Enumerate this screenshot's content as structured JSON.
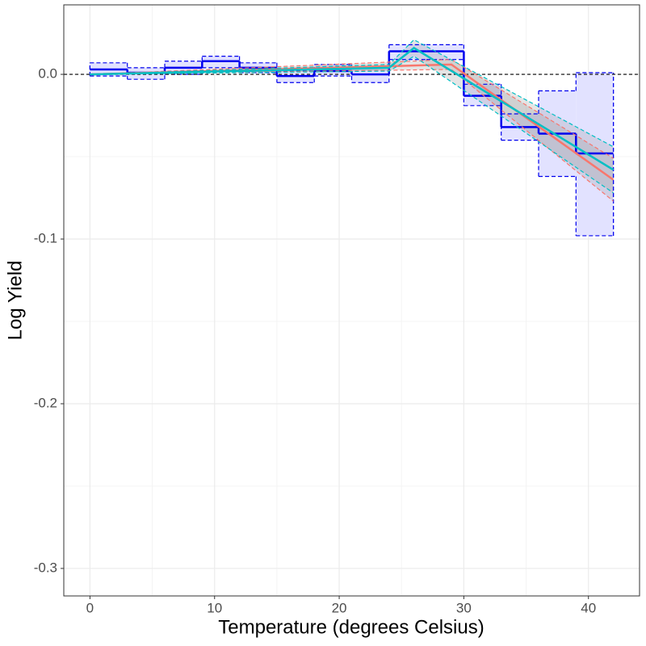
{
  "chart_data": {
    "type": "line",
    "x_label": "Temperature (degrees Celsius)",
    "y_label": "Log Yield",
    "xlim": [
      -2.1,
      44.1
    ],
    "ylim": [
      -0.3167,
      0.0422
    ],
    "xticks": [
      0,
      10,
      20,
      30,
      40
    ],
    "yticks": [
      -0.3,
      -0.2,
      -0.1,
      {
        "value": 0,
        "label": "0.0"
      }
    ],
    "xminor": [
      5,
      15,
      25,
      35
    ],
    "yminor": [
      -0.25,
      -0.15,
      -0.05
    ],
    "grid": true,
    "reference_line": 0,
    "step_series": {
      "color": "#0000ee",
      "fill": "#e2e2ff",
      "bins": [
        0,
        3,
        6,
        9,
        12,
        15,
        18,
        21,
        24,
        27,
        30,
        33,
        36,
        39,
        42
      ],
      "values": [
        0.003,
        0.001,
        0.004,
        0.008,
        0.004,
        -0.001,
        0.002,
        0.0,
        0.014,
        0.014,
        -0.013,
        -0.032,
        -0.036,
        -0.048
      ],
      "upper": [
        0.007,
        0.004,
        0.008,
        0.011,
        0.007,
        0.002,
        0.006,
        0.004,
        0.018,
        0.018,
        -0.006,
        -0.024,
        -0.01,
        0.001
      ],
      "lower": [
        -0.001,
        -0.003,
        0.0,
        0.004,
        0.001,
        -0.005,
        -0.001,
        -0.005,
        0.009,
        0.009,
        -0.019,
        -0.04,
        -0.062,
        -0.098
      ]
    },
    "series": [
      {
        "color": "#f8766d",
        "x": [
          0,
          29,
          42
        ],
        "values": [
          0,
          0.006,
          -0.064
        ],
        "upper": [
          0,
          0.009,
          -0.051
        ],
        "lower": [
          0,
          0.003,
          -0.077
        ]
      },
      {
        "color": "#00bfc4",
        "x": [
          0,
          24,
          26,
          42
        ],
        "values": [
          0,
          0.004,
          0.016,
          -0.058
        ],
        "upper": [
          0,
          0.006,
          0.021,
          -0.044
        ],
        "lower": [
          0,
          0.002,
          0.011,
          -0.072
        ]
      }
    ]
  }
}
